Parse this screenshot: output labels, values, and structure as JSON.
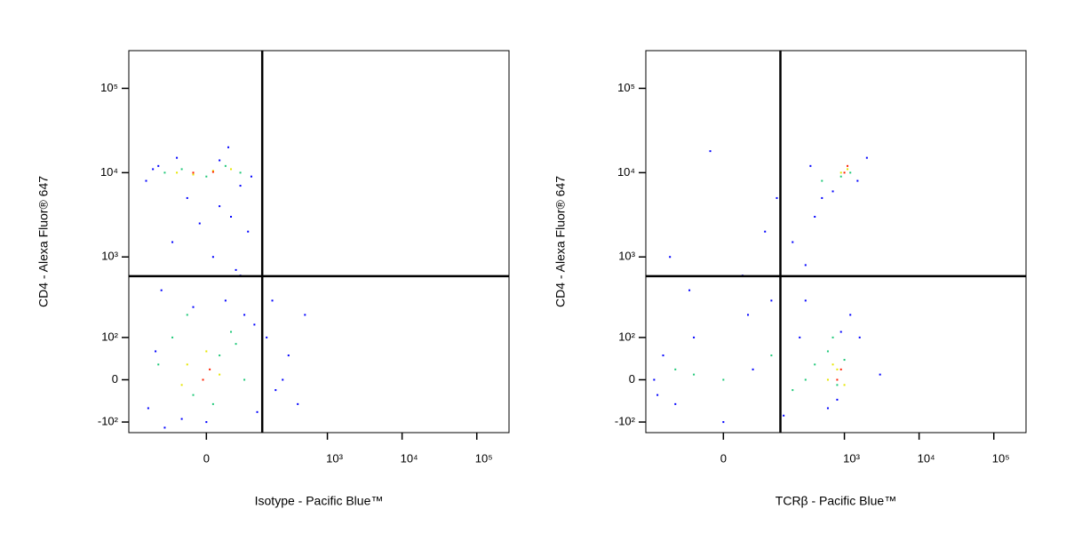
{
  "chart_data": [
    {
      "type": "scatter",
      "scale": "arcsinh",
      "xlabel": "Isotype - Pacific Blue™",
      "ylabel": "CD4 - Alexa Fluor® 647",
      "xlim": [
        -260,
        270000
      ],
      "ylim": [
        -140,
        280000
      ],
      "xticks": [
        0,
        {
          "value": 1000,
          "label": "10³"
        },
        {
          "value": 10000,
          "label": "10⁴"
        },
        {
          "value": 100000,
          "label": "10⁵"
        }
      ],
      "yticks": [
        {
          "value": 100000,
          "label": "10⁵"
        },
        {
          "value": 10000,
          "label": "10⁴"
        },
        {
          "value": 1000,
          "label": "10³"
        },
        {
          "value": 100,
          "label": "10²"
        },
        0,
        {
          "value": -100,
          "label": "-10²"
        }
      ],
      "quadrant_gate": {
        "x": 130,
        "y": 590
      },
      "series": [
        {
          "color": "#0000ff",
          "x": [
            -150,
            -100,
            -50,
            20,
            60,
            90,
            -120,
            -30,
            40,
            80,
            -60,
            10,
            50,
            -90,
            30,
            70,
            -20,
            100,
            -140,
            0,
            150,
            200,
            300,
            500,
            250,
            180,
            400,
            -80,
            -40,
            60,
            20,
            -10,
            110,
            -110,
            35
          ],
          "y": [
            8000,
            12000,
            15000,
            14000,
            7000,
            9000,
            11000,
            5000,
            3000,
            2000,
            1500,
            1000,
            700,
            400,
            300,
            200,
            250,
            150,
            -60,
            -100,
            100,
            -20,
            50,
            200,
            0,
            300,
            -50,
            -120,
            -90,
            600,
            4000,
            2500,
            -70,
            60,
            20000
          ]
        },
        {
          "color": "#1ec878",
          "x": [
            -80,
            -40,
            0,
            30,
            60,
            -60,
            20,
            -20,
            40,
            -100,
            70,
            -30,
            10,
            50
          ],
          "y": [
            10000,
            11000,
            9000,
            12000,
            10000,
            100,
            50,
            -30,
            120,
            30,
            0,
            200,
            -50,
            80
          ]
        },
        {
          "color": "#e6e600",
          "x": [
            -50,
            -20,
            10,
            40,
            -30,
            20,
            0,
            -40
          ],
          "y": [
            10000,
            9500,
            10500,
            11000,
            30,
            10,
            60,
            -10
          ]
        },
        {
          "color": "#ff1e00",
          "x": [
            -20,
            10,
            -5,
            5
          ],
          "y": [
            10000,
            10200,
            0,
            20
          ]
        }
      ]
    },
    {
      "type": "scatter",
      "scale": "arcsinh",
      "xlabel": "TCRβ - Pacific Blue™",
      "ylabel": "CD4 - Alexa Fluor® 647",
      "xlim": [
        -260,
        270000
      ],
      "ylim": [
        -140,
        280000
      ],
      "xticks": [
        0,
        {
          "value": 1000,
          "label": "10³"
        },
        {
          "value": 10000,
          "label": "10⁴"
        },
        {
          "value": 100000,
          "label": "10⁵"
        }
      ],
      "yticks": [
        {
          "value": 100000,
          "label": "10⁵"
        },
        {
          "value": 10000,
          "label": "10⁴"
        },
        {
          "value": 1000,
          "label": "10³"
        },
        {
          "value": 100,
          "label": "10²"
        },
        0,
        {
          "value": -100,
          "label": "-10²"
        }
      ],
      "quadrant_gate": {
        "x": 135,
        "y": 590
      },
      "series": [
        {
          "color": "#0000ff",
          "x": [
            -200,
            -150,
            -100,
            -50,
            0,
            50,
            100,
            -180,
            200,
            300,
            400,
            500,
            700,
            1500,
            2000,
            -60,
            40,
            150,
            250,
            -120,
            80,
            600,
            900,
            1200,
            3000,
            -20,
            30,
            120,
            350,
            800,
            300,
            1600
          ],
          "y": [
            0,
            50,
            -50,
            100,
            -100,
            20,
            300,
            -30,
            1500,
            800,
            3000,
            5000,
            6000,
            8000,
            15000,
            400,
            200,
            -80,
            100,
            1000,
            2000,
            -60,
            120,
            200,
            10,
            18000,
            600,
            5000,
            12000,
            -40,
            300,
            100
          ]
        },
        {
          "color": "#1ec878",
          "x": [
            -100,
            0,
            100,
            200,
            400,
            600,
            800,
            1000,
            700,
            500,
            1200,
            900,
            -50,
            300
          ],
          "y": [
            20,
            0,
            50,
            -20,
            30,
            60,
            -10,
            40,
            100,
            8000,
            10000,
            9000,
            10,
            0
          ]
        },
        {
          "color": "#e6e600",
          "x": [
            600,
            800,
            1000,
            900,
            700,
            1100
          ],
          "y": [
            0,
            20,
            -10,
            10000,
            30,
            11000
          ]
        },
        {
          "color": "#ff1e00",
          "x": [
            800,
            900,
            1000,
            1100
          ],
          "y": [
            0,
            20,
            10000,
            12000
          ]
        }
      ]
    }
  ]
}
